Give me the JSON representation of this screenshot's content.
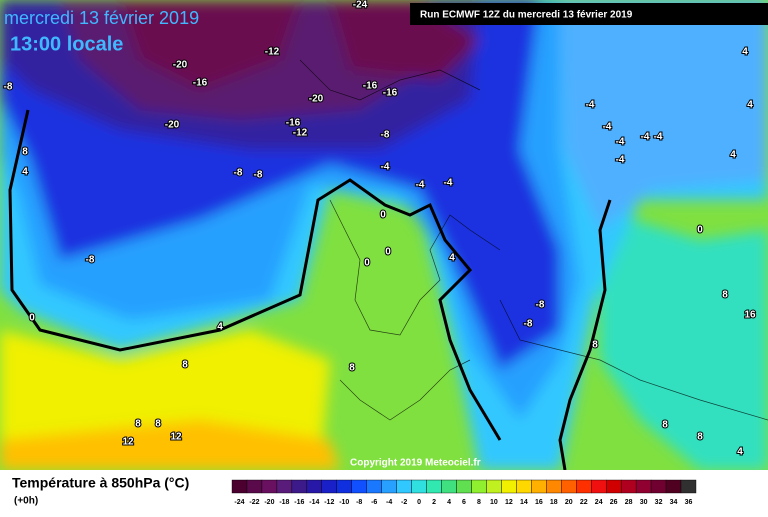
{
  "header": {
    "date": "mercredi 13 février 2019",
    "time": "13:00 locale"
  },
  "run_banner": "Run ECMWF 12Z du mercredi 13 février 2019",
  "copyright": "Copyright 2019 Meteociel.fr",
  "footer": {
    "title": "Température à 850hPa (°C)",
    "step": "(+0h)"
  },
  "contour_labels": [
    -24,
    -20,
    -16,
    -12,
    -20,
    -16,
    -12,
    -20,
    -16,
    -16,
    -8,
    -8,
    -8,
    -8,
    -4,
    -4,
    -4,
    -8,
    0,
    0,
    0,
    0,
    4,
    4,
    8,
    8,
    4,
    -8,
    -8,
    -4,
    -4,
    -4,
    -4,
    -4,
    -4,
    0,
    4,
    4,
    4,
    8,
    8,
    8,
    8,
    12,
    12,
    8,
    8,
    8,
    16,
    4
  ],
  "colorbar": {
    "labels": [
      -24,
      -22,
      -20,
      -18,
      -16,
      -14,
      -12,
      -10,
      -8,
      -6,
      -4,
      -2,
      0,
      2,
      4,
      6,
      8,
      10,
      12,
      14,
      16,
      18,
      20,
      22,
      24,
      26,
      28,
      30,
      32,
      34,
      36
    ],
    "colors": [
      "#4b0030",
      "#5a0a4a",
      "#6a1060",
      "#5a1c7a",
      "#3c1a8a",
      "#2818a8",
      "#1a20c8",
      "#1030e0",
      "#1050ff",
      "#1a78ff",
      "#28a0ff",
      "#30c8ff",
      "#30e0e0",
      "#30e8b0",
      "#40e080",
      "#60e050",
      "#90f030",
      "#c0f020",
      "#f0f000",
      "#ffd800",
      "#ffb000",
      "#ff8800",
      "#ff6000",
      "#ff3000",
      "#f01010",
      "#d00000",
      "#b00020",
      "#900030",
      "#700030",
      "#500020",
      "#303030"
    ]
  }
}
